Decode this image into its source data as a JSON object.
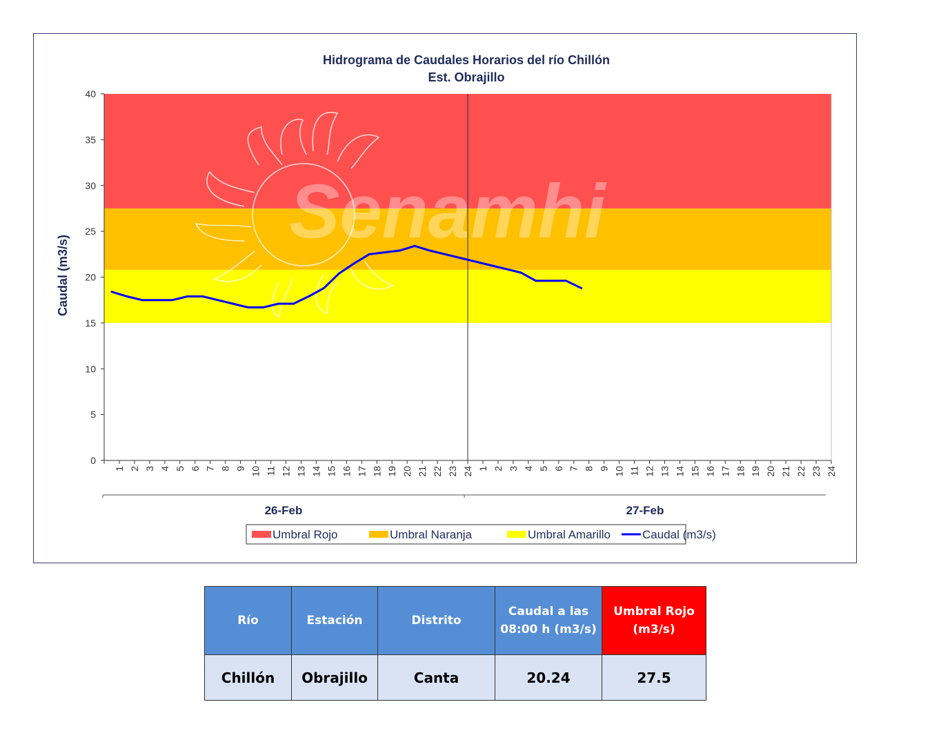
{
  "chart_data": {
    "type": "line",
    "title": "Hidrograma  de Caudales Horarios  del río Chillón",
    "subtitle": "Est. Obrajillo",
    "ylabel": "Caudal (m3/s)",
    "ylim": [
      0,
      40
    ],
    "yticks": [
      0,
      5,
      10,
      15,
      20,
      25,
      30,
      35,
      40
    ],
    "x_tick_labels": [
      "1",
      "2",
      "3",
      "4",
      "5",
      "6",
      "7",
      "8",
      "9",
      "10",
      "11",
      "12",
      "13",
      "14",
      "15",
      "16",
      "17",
      "18",
      "19",
      "20",
      "21",
      "22",
      "23",
      "24"
    ],
    "days": [
      "26-Feb",
      "27-Feb"
    ],
    "thresholds": [
      {
        "name": "Umbral Rojo",
        "from": 27.5,
        "to": 40,
        "color": "#ff5050"
      },
      {
        "name": "Umbral Naranja",
        "from": 20.8,
        "to": 27.5,
        "color": "#ffc000"
      },
      {
        "name": "Umbral Amarillo",
        "from": 15,
        "to": 20.8,
        "color": "#ffff00"
      }
    ],
    "series": [
      {
        "name": "Caudal (m3/s)",
        "color": "#0000ff",
        "values": [
          18.4,
          17.9,
          17.5,
          17.5,
          17.5,
          17.9,
          17.9,
          17.5,
          17.1,
          16.7,
          16.7,
          17.1,
          17.1,
          17.9,
          18.8,
          20.4,
          21.5,
          22.5,
          22.7,
          22.9,
          23.4,
          22.9,
          22.5,
          22.1,
          21.7,
          21.3,
          20.9,
          20.5,
          19.6,
          19.6,
          19.6,
          18.8
        ],
        "watermark": "Senamhi"
      }
    ],
    "watermark": "Senamhi"
  },
  "table": {
    "headers": {
      "rio": "Río",
      "estacion": "Estación",
      "distrito": "Distrito",
      "caudal_line1": "Caudal a las",
      "caudal_line2": "08:00 h (m3/s)",
      "umbral_line1": "Umbral Rojo",
      "umbral_line2": "(m3/s)"
    },
    "row": {
      "rio": "Chillón",
      "estacion": "Obrajillo",
      "distrito": "Canta",
      "caudal": "20.24",
      "umbral": "27.5"
    }
  }
}
